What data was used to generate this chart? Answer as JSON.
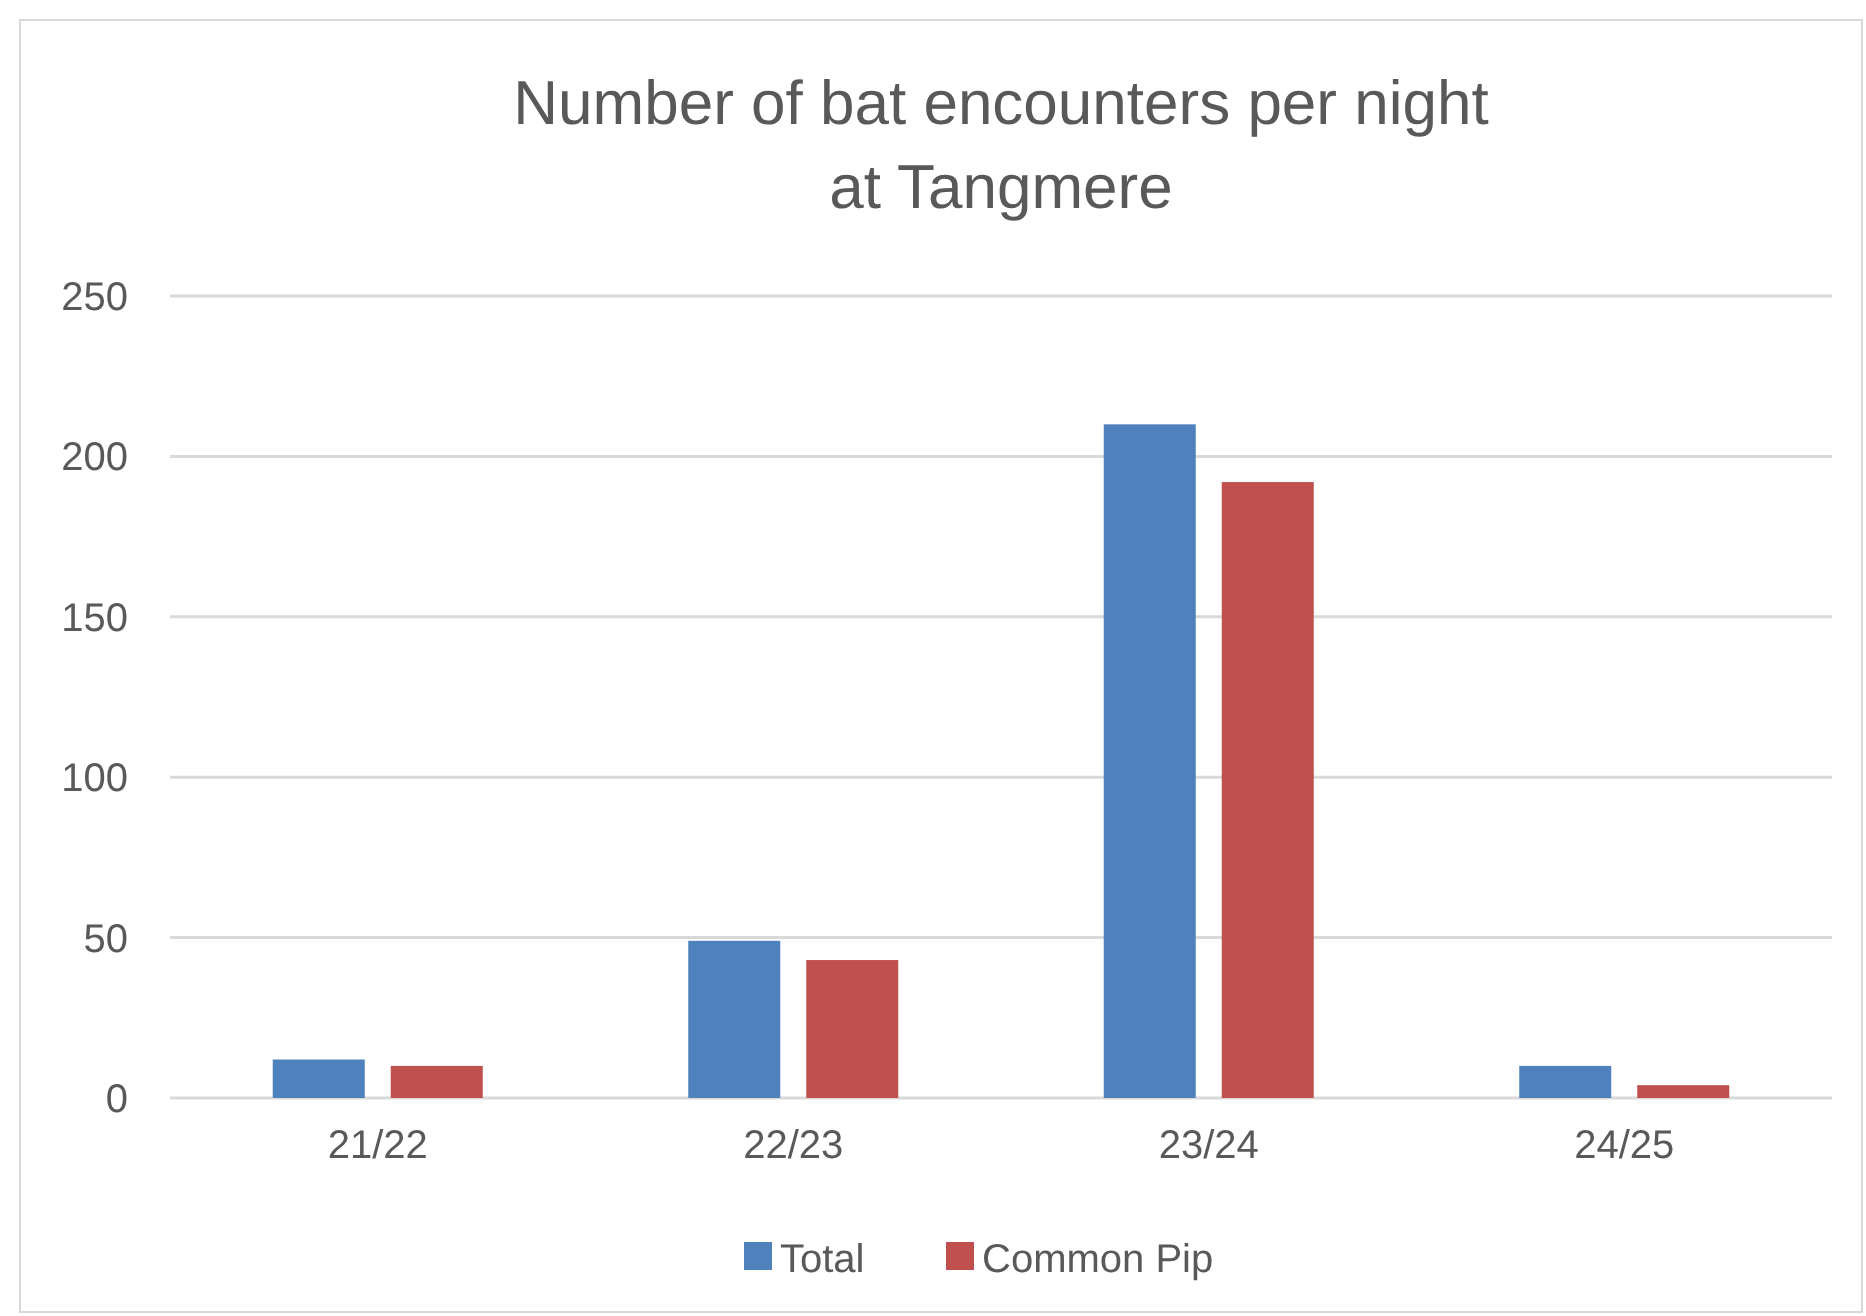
{
  "chart_data": {
    "type": "bar",
    "title": "Number of bat encounters per night at Tangmere",
    "categories": [
      "21/22",
      "22/23",
      "23/24",
      "24/25"
    ],
    "series": [
      {
        "name": "Total",
        "color": "#4f81bd",
        "values": [
          12,
          49,
          210,
          10
        ]
      },
      {
        "name": "Common Pip",
        "color": "#c0504d",
        "values": [
          10,
          43,
          192,
          4
        ]
      }
    ],
    "ylim": [
      0,
      250
    ],
    "yticks": [
      0,
      50,
      100,
      150,
      200,
      250
    ],
    "grid": "y",
    "legend": "bottom"
  }
}
